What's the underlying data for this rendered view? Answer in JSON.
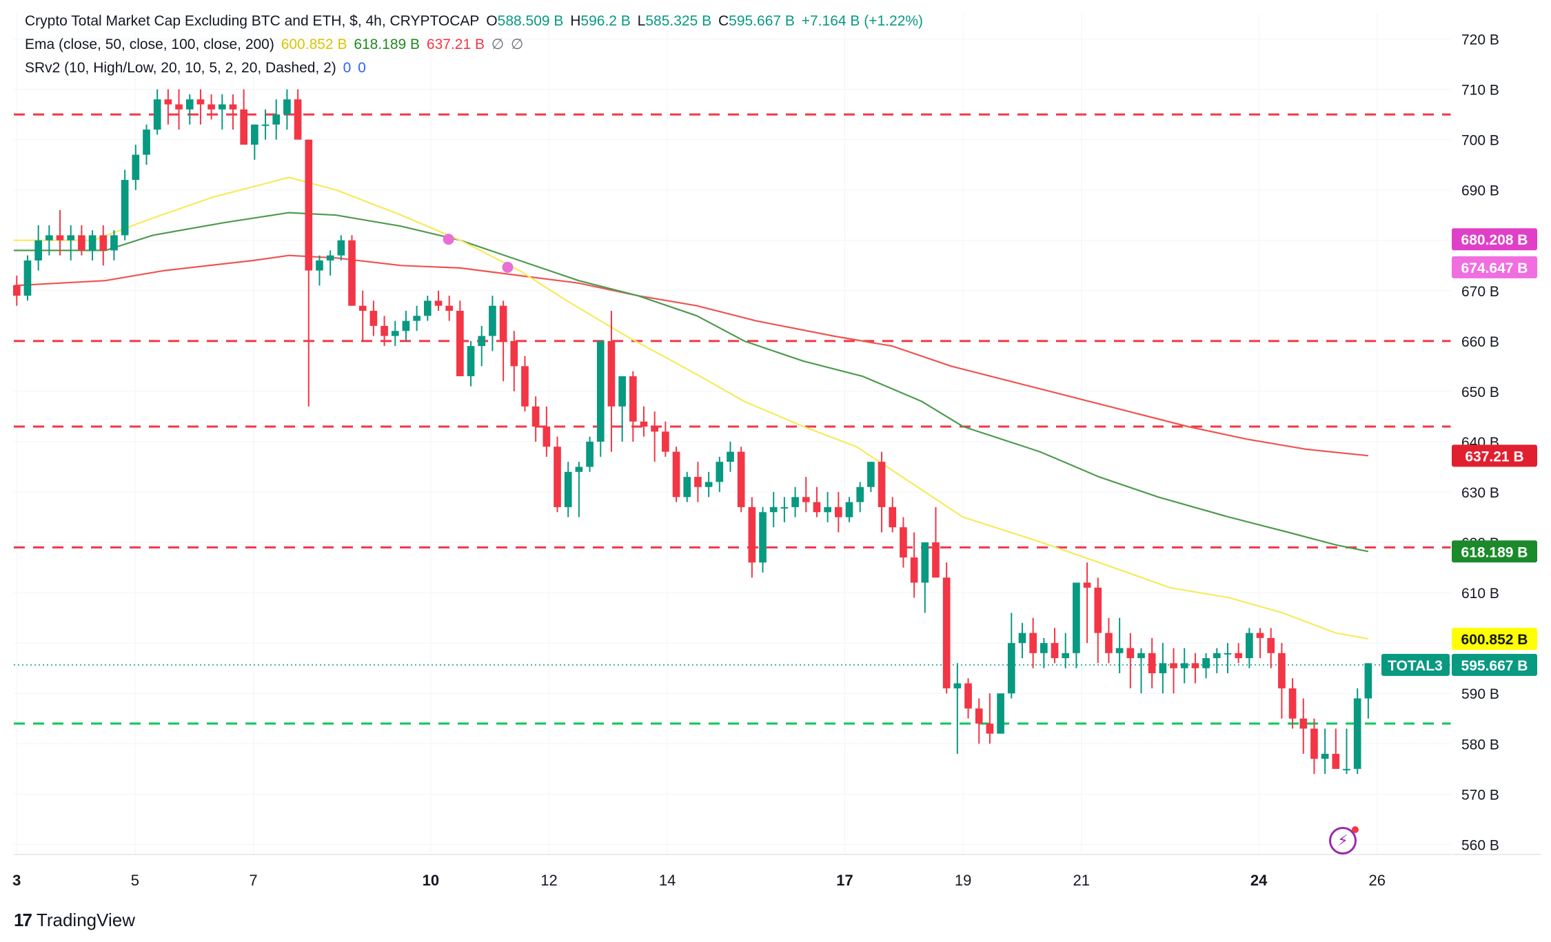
{
  "legend": {
    "main_title": "Crypto Total Market Cap Excluding BTC and ETH, $, 4h, CRYPTOCAP",
    "o_label": "O",
    "o_value": "588.509 B",
    "h_label": "H",
    "h_value": "596.2 B",
    "l_label": "L",
    "l_value": "585.325 B",
    "c_label": "C",
    "c_value": "595.667 B",
    "change": "+7.164 B (+1.22%)",
    "ema_title": "Ema (close, 50, close, 100, close, 200)",
    "ema50": "600.852 B",
    "ema100": "618.189 B",
    "ema200": "637.21 B",
    "ema_extra1": "∅",
    "ema_extra2": "∅",
    "srv2_title": "SRv2 (10, High/Low, 20, 10, 5, 2, 20, Dashed, 2)",
    "srv2_v1": "0",
    "srv2_v2": "0"
  },
  "branding": {
    "logo": "17",
    "name": "TradingView"
  },
  "colors": {
    "up": "#089981",
    "down": "#f23645",
    "ema50": "#f5eb5a",
    "ema100": "#4e9a4e",
    "ema200": "#f0534f",
    "resistance": "#f23645",
    "support": "#00c853",
    "marker": "#e86fd7",
    "grid": "#f0f3fa"
  },
  "chart_data": {
    "type": "candlestick",
    "title": "Crypto Total Market Cap Excluding BTC and ETH, $, 4h, CRYPTOCAP",
    "unit": "B",
    "ylim": [
      558,
      725
    ],
    "x_range_days": [
      2.95,
      27.25
    ],
    "y_ticks": [
      "720 B",
      "710 B",
      "700 B",
      "690 B",
      "680 B",
      "670 B",
      "660 B",
      "650 B",
      "640 B",
      "630 B",
      "620 B",
      "610 B",
      "600 B",
      "590 B",
      "580 B",
      "570 B",
      "560 B"
    ],
    "y_tick_values": [
      720,
      710,
      700,
      690,
      680,
      670,
      660,
      650,
      640,
      630,
      620,
      610,
      600,
      590,
      580,
      570,
      560
    ],
    "x_ticks": [
      {
        "label": "3",
        "day": 3,
        "bold": true
      },
      {
        "label": "5",
        "day": 5,
        "bold": false
      },
      {
        "label": "7",
        "day": 7,
        "bold": false
      },
      {
        "label": "10",
        "day": 10,
        "bold": true
      },
      {
        "label": "12",
        "day": 12,
        "bold": false
      },
      {
        "label": "14",
        "day": 14,
        "bold": false
      },
      {
        "label": "17",
        "day": 17,
        "bold": true
      },
      {
        "label": "19",
        "day": 19,
        "bold": false
      },
      {
        "label": "21",
        "day": 21,
        "bold": false
      },
      {
        "label": "24",
        "day": 24,
        "bold": true
      },
      {
        "label": "26",
        "day": 26,
        "bold": false
      }
    ],
    "candles_ohlc": [
      [
        671,
        673,
        667,
        669
      ],
      [
        669,
        677,
        668,
        676
      ],
      [
        676,
        683,
        674,
        680
      ],
      [
        680,
        683,
        677,
        681
      ],
      [
        681,
        686,
        677,
        680
      ],
      [
        680,
        683,
        676,
        681
      ],
      [
        681,
        683,
        677,
        678
      ],
      [
        678,
        682,
        676,
        681
      ],
      [
        681,
        683,
        675,
        678
      ],
      [
        678,
        682,
        676,
        681
      ],
      [
        681,
        694,
        680,
        692
      ],
      [
        692,
        699,
        690,
        697
      ],
      [
        697,
        703,
        695,
        702
      ],
      [
        702,
        710,
        701,
        708
      ],
      [
        708,
        710,
        703,
        707
      ],
      [
        707,
        710,
        702,
        706
      ],
      [
        706,
        709,
        703,
        708
      ],
      [
        708,
        710,
        703,
        707
      ],
      [
        707,
        709,
        704,
        706
      ],
      [
        706,
        709,
        702,
        707
      ],
      [
        707,
        709,
        702,
        706
      ],
      [
        706,
        710,
        701,
        699
      ],
      [
        699,
        703,
        696,
        703
      ],
      [
        703,
        706,
        700,
        703
      ],
      [
        703,
        708,
        700,
        705
      ],
      [
        705,
        710,
        702,
        708
      ],
      [
        708,
        710,
        704,
        700
      ],
      [
        700,
        700,
        647,
        674
      ],
      [
        674,
        677,
        671,
        676
      ],
      [
        676,
        678,
        673,
        677
      ],
      [
        677,
        681,
        676,
        680
      ],
      [
        680,
        681,
        667,
        667
      ],
      [
        667,
        670,
        660,
        666
      ],
      [
        666,
        668,
        661,
        663
      ],
      [
        663,
        665,
        659,
        661
      ],
      [
        661,
        664,
        659,
        662
      ],
      [
        662,
        666,
        660,
        664
      ],
      [
        664,
        667,
        662,
        665
      ],
      [
        665,
        669,
        664,
        668
      ],
      [
        668,
        670,
        666,
        667
      ],
      [
        667,
        669,
        664,
        666
      ],
      [
        666,
        668,
        653,
        653
      ],
      [
        653,
        660,
        651,
        659
      ],
      [
        659,
        663,
        655,
        661
      ],
      [
        661,
        669,
        658,
        667
      ],
      [
        667,
        668,
        652,
        660
      ],
      [
        660,
        662,
        650,
        655
      ],
      [
        655,
        657,
        646,
        647
      ],
      [
        647,
        649,
        640,
        643
      ],
      [
        643,
        647,
        637,
        639
      ],
      [
        639,
        641,
        626,
        627
      ],
      [
        627,
        636,
        625,
        634
      ],
      [
        634,
        636,
        625,
        635
      ],
      [
        635,
        641,
        634,
        640
      ],
      [
        640,
        648,
        637,
        660
      ],
      [
        660,
        666,
        638,
        647
      ],
      [
        647,
        653,
        640,
        653
      ],
      [
        653,
        654,
        640,
        644
      ],
      [
        644,
        647,
        641,
        643
      ],
      [
        643,
        646,
        636,
        642
      ],
      [
        642,
        644,
        637,
        638
      ],
      [
        638,
        639,
        628,
        629
      ],
      [
        629,
        634,
        628,
        633
      ],
      [
        633,
        636,
        628,
        631
      ],
      [
        631,
        634,
        629,
        632
      ],
      [
        632,
        637,
        630,
        636
      ],
      [
        636,
        640,
        634,
        638
      ],
      [
        638,
        639,
        626,
        627
      ],
      [
        627,
        629,
        613,
        616
      ],
      [
        616,
        627,
        614,
        626
      ],
      [
        626,
        630,
        623,
        627
      ],
      [
        627,
        629,
        624,
        627
      ],
      [
        627,
        631,
        625,
        629
      ],
      [
        629,
        633,
        626,
        628
      ],
      [
        628,
        631,
        625,
        626
      ],
      [
        626,
        630,
        624,
        627
      ],
      [
        627,
        630,
        622,
        625
      ],
      [
        625,
        629,
        624,
        628
      ],
      [
        628,
        632,
        626,
        631
      ],
      [
        631,
        636,
        630,
        636
      ],
      [
        636,
        638,
        622,
        627
      ],
      [
        627,
        629,
        622,
        623
      ],
      [
        623,
        625,
        615,
        617
      ],
      [
        617,
        622,
        609,
        612
      ],
      [
        612,
        620,
        606,
        620
      ],
      [
        620,
        627,
        614,
        613
      ],
      [
        613,
        616,
        590,
        591
      ],
      [
        591,
        596,
        578,
        592
      ],
      [
        592,
        593,
        585,
        587
      ],
      [
        587,
        589,
        580,
        584
      ],
      [
        584,
        590,
        580,
        582
      ],
      [
        582,
        584,
        582,
        590
      ],
      [
        590,
        606,
        589,
        600
      ],
      [
        600,
        604,
        597,
        602
      ],
      [
        602,
        605,
        595,
        598
      ],
      [
        598,
        601,
        595,
        600
      ],
      [
        600,
        603,
        596,
        597
      ],
      [
        597,
        602,
        595,
        598
      ],
      [
        598,
        606,
        595,
        612
      ],
      [
        612,
        616,
        600,
        611
      ],
      [
        611,
        613,
        596,
        602
      ],
      [
        602,
        605,
        596,
        598
      ],
      [
        598,
        605,
        594,
        599
      ],
      [
        599,
        602,
        591,
        597
      ],
      [
        597,
        599,
        590,
        598
      ],
      [
        598,
        601,
        591,
        594
      ],
      [
        594,
        600,
        590,
        596
      ],
      [
        596,
        599,
        590,
        595
      ],
      [
        595,
        599,
        592,
        596
      ],
      [
        596,
        598,
        592,
        595
      ],
      [
        595,
        598,
        593,
        597
      ],
      [
        597,
        599,
        594,
        598
      ],
      [
        598,
        600,
        594,
        598
      ],
      [
        598,
        600,
        596,
        597
      ],
      [
        597,
        603,
        595,
        602
      ],
      [
        602,
        603,
        597,
        601
      ],
      [
        601,
        603,
        595,
        598
      ],
      [
        598,
        600,
        585,
        591
      ],
      [
        591,
        593,
        583,
        585
      ],
      [
        585,
        589,
        578,
        583
      ],
      [
        583,
        585,
        574,
        577
      ],
      [
        577,
        583,
        574,
        578
      ],
      [
        578,
        583,
        577,
        575
      ],
      [
        575,
        583,
        574,
        575
      ],
      [
        575,
        591,
        574,
        589
      ],
      [
        589,
        596,
        585,
        596
      ]
    ],
    "ema_50": [
      [
        2.95,
        680
      ],
      [
        4.3,
        680
      ],
      [
        5.2,
        684
      ],
      [
        6.3,
        688.5
      ],
      [
        7.6,
        692.5
      ],
      [
        8.4,
        690
      ],
      [
        9.5,
        685
      ],
      [
        10.5,
        680
      ],
      [
        11.5,
        674
      ],
      [
        12.3,
        668
      ],
      [
        13.3,
        661
      ],
      [
        14.4,
        654
      ],
      [
        15.3,
        648
      ],
      [
        16.3,
        643
      ],
      [
        17.2,
        639
      ],
      [
        18.1,
        632
      ],
      [
        19.0,
        625
      ],
      [
        20.2,
        620.5
      ],
      [
        21.3,
        616
      ],
      [
        22.5,
        611
      ],
      [
        23.5,
        609
      ],
      [
        24.4,
        606
      ],
      [
        25.3,
        602
      ],
      [
        25.85,
        600.852
      ]
    ],
    "ema_100": [
      [
        2.95,
        678
      ],
      [
        4.5,
        678
      ],
      [
        5.3,
        681
      ],
      [
        6.5,
        683.5
      ],
      [
        7.6,
        685.5
      ],
      [
        8.4,
        685
      ],
      [
        9.5,
        682.8
      ],
      [
        10.5,
        680
      ],
      [
        11.5,
        676
      ],
      [
        12.5,
        672
      ],
      [
        13.5,
        669
      ],
      [
        14.5,
        665
      ],
      [
        15.3,
        660
      ],
      [
        16.3,
        656
      ],
      [
        17.3,
        653
      ],
      [
        18.3,
        648
      ],
      [
        19.0,
        643
      ],
      [
        20.3,
        638
      ],
      [
        21.3,
        633
      ],
      [
        22.3,
        629
      ],
      [
        23.5,
        625
      ],
      [
        24.5,
        622
      ],
      [
        25.3,
        619.5
      ],
      [
        25.85,
        618.189
      ]
    ],
    "ema_200": [
      [
        2.95,
        671
      ],
      [
        4.5,
        672
      ],
      [
        5.5,
        674
      ],
      [
        7.0,
        676
      ],
      [
        7.6,
        677
      ],
      [
        8.4,
        676.5
      ],
      [
        9.5,
        675
      ],
      [
        10.5,
        674.5
      ],
      [
        11.5,
        673
      ],
      [
        12.5,
        671.5
      ],
      [
        13.5,
        669
      ],
      [
        14.5,
        667
      ],
      [
        15.5,
        664
      ],
      [
        16.8,
        661
      ],
      [
        17.8,
        659
      ],
      [
        18.8,
        655
      ],
      [
        19.8,
        652
      ],
      [
        20.8,
        649
      ],
      [
        21.8,
        646
      ],
      [
        22.8,
        643
      ],
      [
        23.8,
        640.5
      ],
      [
        24.8,
        638.5
      ],
      [
        25.85,
        637.21
      ]
    ],
    "crossover_markers": [
      {
        "day": 10.3,
        "value": 680.208
      },
      {
        "day": 11.3,
        "value": 674.647
      }
    ],
    "support_resistance": [
      {
        "value": 705,
        "kind": "resistance"
      },
      {
        "value": 660,
        "kind": "resistance"
      },
      {
        "value": 643,
        "kind": "resistance"
      },
      {
        "value": 619,
        "kind": "resistance"
      },
      {
        "value": 584,
        "kind": "support"
      }
    ],
    "last_price": 595.667,
    "price_labels": [
      {
        "text": "680.208 B",
        "value": 680.208,
        "bg": "#e040c8",
        "fg": "#ffffff"
      },
      {
        "text": "674.647 B",
        "value": 674.647,
        "bg": "#f06ee0",
        "fg": "#ffffff"
      },
      {
        "text": "637.21 B",
        "value": 637.21,
        "bg": "#e0202e",
        "fg": "#ffffff"
      },
      {
        "text": "618.189 B",
        "value": 618.189,
        "bg": "#1b8a2a",
        "fg": "#ffffff"
      },
      {
        "text": "600.852 B",
        "value": 600.852,
        "bg": "#ffff00",
        "fg": "#131722"
      },
      {
        "text": "595.667 B",
        "value": 595.667,
        "bg": "#089981",
        "fg": "#ffffff"
      }
    ],
    "symbol_label": "TOTAL3"
  }
}
